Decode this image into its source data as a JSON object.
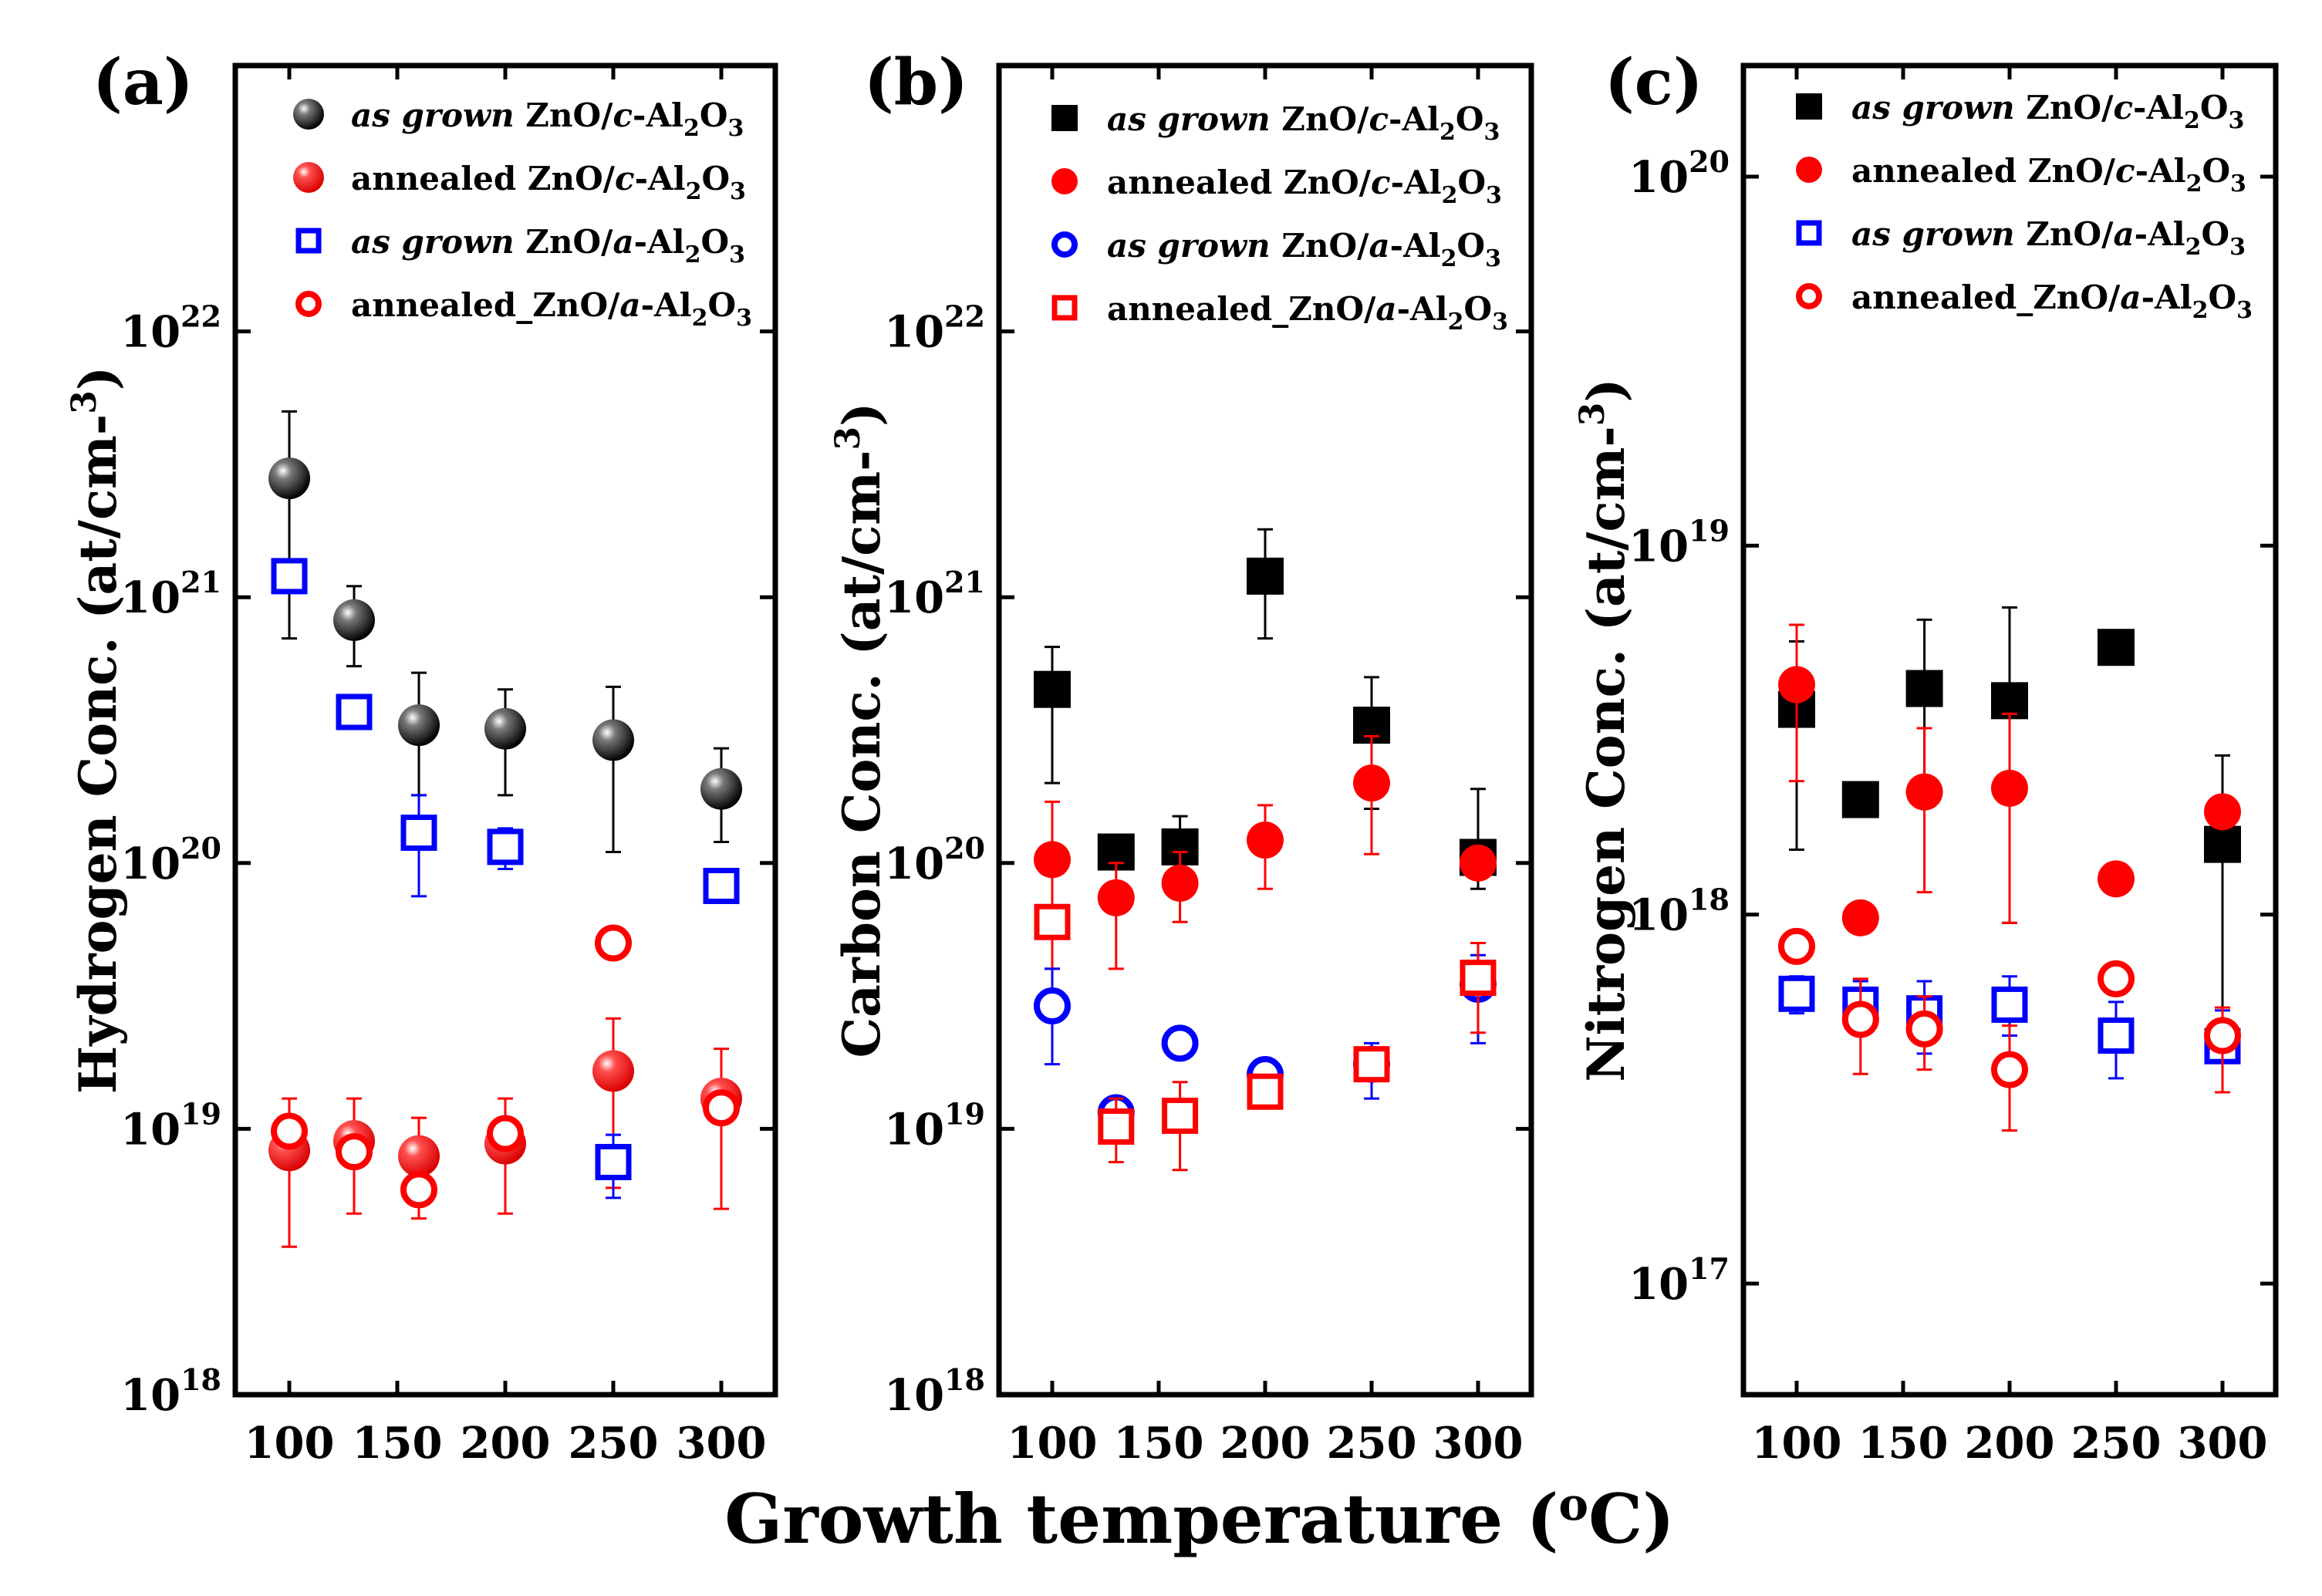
{
  "xlabel": "Growth temperature (oC)",
  "chart_data": [
    {
      "type": "scatter",
      "panel": "(a)",
      "ylabel": "Hydrogen Conc. (at/cm-3)",
      "yscale": "log",
      "ylim": [
        1e+18,
        1e+23
      ],
      "xlim": [
        75,
        325
      ],
      "xticks": [
        "100",
        "150",
        "200",
        "250",
        "300"
      ],
      "yticks": [
        {
          "base": "10",
          "exp": "18",
          "value": 1e+18
        },
        {
          "base": "10",
          "exp": "19",
          "value": 1e+19
        },
        {
          "base": "10",
          "exp": "20",
          "value": 1e+20
        },
        {
          "base": "10",
          "exp": "21",
          "value": 1e+21
        },
        {
          "base": "10",
          "exp": "22",
          "value": 1e+22
        }
      ],
      "legend": [
        "as grown ZnO/c-Al2O3",
        "annealed ZnO/c-Al2O3",
        "as grown ZnO/a-Al2O3",
        "annealed_ZnO/a-Al2O3"
      ],
      "series": [
        {
          "name": "as grown ZnO/c-Al2O3",
          "marker": "ball",
          "color": "#000000",
          "points": [
            {
              "x": 100,
              "y": 2.8e+21,
              "lo": 7e+20,
              "hi": 5e+21
            },
            {
              "x": 130,
              "y": 8.2e+20,
              "lo": 5.5e+20,
              "hi": 1.1e+21
            },
            {
              "x": 160,
              "y": 3.3e+20,
              "lo": 1.8e+20,
              "hi": 5.2e+20
            },
            {
              "x": 200,
              "y": 3.2e+20,
              "lo": 1.8e+20,
              "hi": 4.5e+20
            },
            {
              "x": 250,
              "y": 2.9e+20,
              "lo": 1.1e+20,
              "hi": 4.6e+20
            },
            {
              "x": 300,
              "y": 1.9e+20,
              "lo": 1.2e+20,
              "hi": 2.7e+20
            }
          ]
        },
        {
          "name": "annealed ZnO/c-Al2O3",
          "marker": "ball",
          "color": "#ff0000",
          "points": [
            {
              "x": 100,
              "y": 8.3e+18,
              "lo": 3.6e+18,
              "hi": 1.3e+19
            },
            {
              "x": 130,
              "y": 9e+18,
              "lo": 4.8e+18,
              "hi": 1.3e+19
            },
            {
              "x": 160,
              "y": 7.9e+18,
              "lo": 4.6e+18,
              "hi": 1.1e+19
            },
            {
              "x": 200,
              "y": 8.8e+18,
              "lo": 4.8e+18,
              "hi": 1.3e+19
            },
            {
              "x": 250,
              "y": 1.65e+19,
              "lo": 6e+18,
              "hi": 2.6e+19
            },
            {
              "x": 300,
              "y": 1.3e+19,
              "lo": 5e+18,
              "hi": 2e+19
            }
          ]
        },
        {
          "name": "as grown ZnO/a-Al2O3",
          "marker": "square-open",
          "color": "#0000ff",
          "points": [
            {
              "x": 100,
              "y": 1.2e+21
            },
            {
              "x": 130,
              "y": 3.7e+20
            },
            {
              "x": 160,
              "y": 1.3e+20,
              "lo": 7.5e+19,
              "hi": 1.8e+20
            },
            {
              "x": 200,
              "y": 1.15e+20,
              "lo": 9.5e+19,
              "hi": 1.35e+20
            },
            {
              "x": 250,
              "y": 7.5e+18,
              "lo": 5.5e+18,
              "hi": 9.5e+18
            },
            {
              "x": 300,
              "y": 8.2e+19
            }
          ]
        },
        {
          "name": "annealed_ZnO/a-Al2O3",
          "marker": "circle-open",
          "color": "#ff0000",
          "points": [
            {
              "x": 100,
              "y": 9.8e+18
            },
            {
              "x": 130,
              "y": 8.2e+18
            },
            {
              "x": 160,
              "y": 5.9e+18
            },
            {
              "x": 200,
              "y": 9.6e+18
            },
            {
              "x": 250,
              "y": 5e+19
            },
            {
              "x": 300,
              "y": 1.2e+19
            }
          ]
        }
      ]
    },
    {
      "type": "scatter",
      "panel": "(b)",
      "ylabel": "Carbon Conc. (at/cm-3)",
      "yscale": "log",
      "ylim": [
        1e+18,
        1e+23
      ],
      "xlim": [
        75,
        325
      ],
      "xticks": [
        "100",
        "150",
        "200",
        "250",
        "300"
      ],
      "yticks": [
        {
          "base": "10",
          "exp": "18",
          "value": 1e+18
        },
        {
          "base": "10",
          "exp": "19",
          "value": 1e+19
        },
        {
          "base": "10",
          "exp": "20",
          "value": 1e+20
        },
        {
          "base": "10",
          "exp": "21",
          "value": 1e+21
        },
        {
          "base": "10",
          "exp": "22",
          "value": 1e+22
        }
      ],
      "legend": [
        "as grown ZnO/c-Al2O3",
        "annealed ZnO/c-Al2O3",
        "as grown ZnO/a-Al2O3",
        "annealed_ZnO/a-Al2O3"
      ],
      "series": [
        {
          "name": "as grown ZnO/c-Al2O3",
          "marker": "square-filled",
          "color": "#000000",
          "points": [
            {
              "x": 100,
              "y": 4.5e+20,
              "lo": 2e+20,
              "hi": 6.5e+20
            },
            {
              "x": 130,
              "y": 1.1e+20
            },
            {
              "x": 160,
              "y": 1.15e+20,
              "lo": 9e+19,
              "hi": 1.5e+20
            },
            {
              "x": 200,
              "y": 1.2e+21,
              "lo": 7e+20,
              "hi": 1.8e+21
            },
            {
              "x": 250,
              "y": 3.3e+20,
              "lo": 1.6e+20,
              "hi": 5e+20
            },
            {
              "x": 300,
              "y": 1.05e+20,
              "lo": 8e+19,
              "hi": 1.9e+20
            }
          ]
        },
        {
          "name": "annealed ZnO/c-Al2O3",
          "marker": "circle-filled",
          "color": "#ff0000",
          "points": [
            {
              "x": 100,
              "y": 1.03e+20,
              "lo": 4e+19,
              "hi": 1.7e+20
            },
            {
              "x": 130,
              "y": 7.4e+19,
              "lo": 4e+19,
              "hi": 1e+20
            },
            {
              "x": 160,
              "y": 8.4e+19,
              "lo": 6e+19,
              "hi": 1.1e+20
            },
            {
              "x": 200,
              "y": 1.22e+20,
              "lo": 8e+19,
              "hi": 1.65e+20
            },
            {
              "x": 250,
              "y": 2e+20,
              "lo": 1.08e+20,
              "hi": 3e+20
            },
            {
              "x": 300,
              "y": 1e+20
            }
          ]
        },
        {
          "name": "as grown ZnO/a-Al2O3",
          "marker": "circle-open",
          "color": "#0000ff",
          "points": [
            {
              "x": 100,
              "y": 2.9e+19,
              "lo": 1.75e+19,
              "hi": 4e+19
            },
            {
              "x": 130,
              "y": 1.15e+19
            },
            {
              "x": 160,
              "y": 2.1e+19
            },
            {
              "x": 200,
              "y": 1.6e+19
            },
            {
              "x": 250,
              "y": 1.75e+19,
              "lo": 1.3e+19,
              "hi": 2.1e+19
            },
            {
              "x": 300,
              "y": 3.5e+19,
              "lo": 2.1e+19,
              "hi": 4.5e+19
            }
          ]
        },
        {
          "name": "annealed_ZnO/a-Al2O3",
          "marker": "square-open",
          "color": "#ff0000",
          "points": [
            {
              "x": 100,
              "y": 6e+19
            },
            {
              "x": 130,
              "y": 1.02e+19,
              "lo": 7.5e+18,
              "hi": 1.3e+19
            },
            {
              "x": 160,
              "y": 1.12e+19,
              "lo": 7e+18,
              "hi": 1.5e+19
            },
            {
              "x": 200,
              "y": 1.38e+19
            },
            {
              "x": 250,
              "y": 1.75e+19
            },
            {
              "x": 300,
              "y": 3.7e+19,
              "lo": 2.3e+19,
              "hi": 5e+19
            }
          ]
        }
      ]
    },
    {
      "type": "scatter",
      "panel": "(c)",
      "ylabel": "Nitrogen Conc. (at/cm-3)",
      "yscale": "log",
      "ylim": [
        5e+16,
        2e+20
      ],
      "xlim": [
        75,
        325
      ],
      "xticks": [
        "100",
        "150",
        "200",
        "250",
        "300"
      ],
      "yticks": [
        {
          "base": "10",
          "exp": "17",
          "value": 1e+17
        },
        {
          "base": "10",
          "exp": "18",
          "value": 1e+18
        },
        {
          "base": "10",
          "exp": "19",
          "value": 1e+19
        },
        {
          "base": "10",
          "exp": "20",
          "value": 1e+20
        }
      ],
      "legend": [
        "as grown ZnO/c-Al2O3",
        "annealed ZnO/c-Al2O3",
        "as grown ZnO/a-Al2O3",
        "annealed_ZnO/a-Al2O3"
      ],
      "series": [
        {
          "name": "as grown ZnO/c-Al2O3",
          "marker": "square-filled",
          "color": "#000000",
          "points": [
            {
              "x": 100,
              "y": 3.6e+18,
              "lo": 1.5e+18,
              "hi": 5.5e+18
            },
            {
              "x": 130,
              "y": 2.05e+18
            },
            {
              "x": 160,
              "y": 4.1e+18,
              "lo": 2e+18,
              "hi": 6.3e+18
            },
            {
              "x": 200,
              "y": 3.8e+18,
              "lo": 9.5e+17,
              "hi": 6.8e+18
            },
            {
              "x": 250,
              "y": 5.3e+18
            },
            {
              "x": 300,
              "y": 1.55e+18,
              "lo": 3.3e+17,
              "hi": 2.7e+18
            }
          ]
        },
        {
          "name": "annealed ZnO/c-Al2O3",
          "marker": "circle-filled",
          "color": "#ff0000",
          "points": [
            {
              "x": 100,
              "y": 4.2e+18,
              "lo": 2.3e+18,
              "hi": 6.1e+18
            },
            {
              "x": 130,
              "y": 9.8e+17
            },
            {
              "x": 160,
              "y": 2.15e+18,
              "lo": 1.15e+18,
              "hi": 3.2e+18
            },
            {
              "x": 200,
              "y": 2.2e+18,
              "lo": 9.5e+17,
              "hi": 3.5e+18
            },
            {
              "x": 250,
              "y": 1.25e+18
            },
            {
              "x": 300,
              "y": 1.9e+18
            }
          ]
        },
        {
          "name": "as grown ZnO/a-Al2O3",
          "marker": "square-open",
          "color": "#0000ff",
          "points": [
            {
              "x": 100,
              "y": 6.1e+17,
              "lo": 5.4e+17,
              "hi": 6.8e+17
            },
            {
              "x": 130,
              "y": 5.7e+17,
              "lo": 5e+17,
              "hi": 6.6e+17
            },
            {
              "x": 160,
              "y": 5.4e+17,
              "lo": 4.2e+17,
              "hi": 6.6e+17
            },
            {
              "x": 200,
              "y": 5.7e+17,
              "lo": 4.7e+17,
              "hi": 6.8e+17
            },
            {
              "x": 250,
              "y": 4.7e+17,
              "lo": 3.6e+17,
              "hi": 5.8e+17
            },
            {
              "x": 300,
              "y": 4.4e+17,
              "lo": 3.3e+17,
              "hi": 5.5e+17
            }
          ]
        },
        {
          "name": "annealed_ZnO/a-Al2O3",
          "marker": "circle-open",
          "color": "#ff0000",
          "points": [
            {
              "x": 100,
              "y": 8.2e+17
            },
            {
              "x": 130,
              "y": 5.2e+17,
              "lo": 3.7e+17,
              "hi": 6.7e+17
            },
            {
              "x": 160,
              "y": 4.9e+17,
              "lo": 3.8e+17,
              "hi": 6e+17
            },
            {
              "x": 200,
              "y": 3.8e+17,
              "lo": 2.6e+17,
              "hi": 5e+17
            },
            {
              "x": 250,
              "y": 6.7e+17
            },
            {
              "x": 300,
              "y": 4.7e+17,
              "lo": 3.3e+17,
              "hi": 5.6e+17
            }
          ]
        }
      ]
    }
  ]
}
